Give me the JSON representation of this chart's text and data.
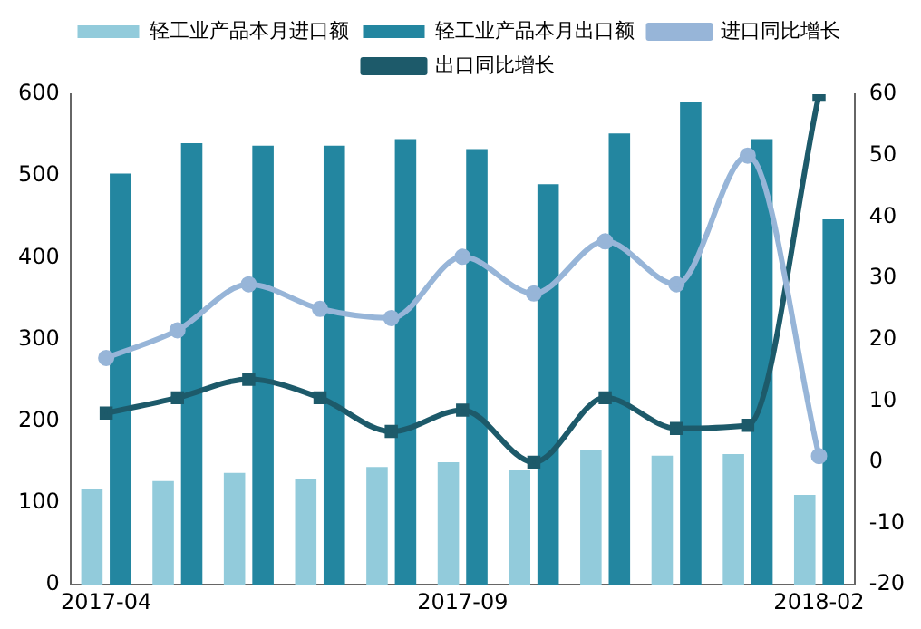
{
  "chart_data": {
    "type": "bar",
    "categories": [
      "2017-04",
      null,
      null,
      null,
      null,
      "2017-09",
      null,
      null,
      null,
      null,
      "2018-02"
    ],
    "series": [
      {
        "name": "轻工业产品本月进口额",
        "color": "#92cbdb",
        "values": [
          117,
          127,
          137,
          130,
          144,
          150,
          140,
          165,
          158,
          160,
          110
        ]
      },
      {
        "name": "轻工业产品本月出口额",
        "color": "#2386a0",
        "values": [
          503,
          540,
          537,
          537,
          545,
          533,
          490,
          552,
          590,
          545,
          447
        ]
      },
      {
        "name": "进口同比增长",
        "type": "line",
        "axis": "y2",
        "marker": "circle",
        "color": "#97b5d8",
        "values": [
          17,
          21.5,
          29,
          25,
          23.5,
          33.5,
          27.5,
          36,
          29,
          50,
          1
        ]
      },
      {
        "name": "出口同比增长",
        "type": "line",
        "axis": "y2",
        "marker": "square",
        "color": "#1d5a6a",
        "values": [
          8,
          10.5,
          13.5,
          10.5,
          5,
          8.5,
          0,
          10.5,
          5.5,
          6,
          60
        ]
      }
    ],
    "ylim": [
      0,
      600
    ],
    "yticks": [
      0,
      100,
      200,
      300,
      400,
      500,
      600
    ],
    "y2lim": [
      -20,
      60
    ],
    "y2ticks": [
      -20,
      -10,
      0,
      10,
      20,
      30,
      40,
      50,
      60
    ],
    "grid": false,
    "legend": "top"
  }
}
